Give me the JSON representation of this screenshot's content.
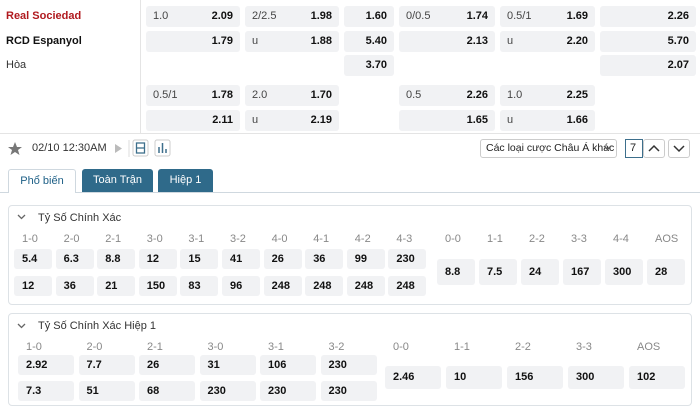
{
  "match": {
    "labels": [
      "Real Sociedad",
      "RCD Espanyol",
      "Hòa"
    ],
    "rows": [
      [
        {
          "line": "1.0",
          "odds": "2.09"
        },
        {
          "line": "2/2.5",
          "odds": "1.98"
        },
        {
          "odds": "1.60"
        },
        {
          "line": "0/0.5",
          "odds": "1.74"
        },
        {
          "line": "0.5/1",
          "odds": "1.69"
        },
        {
          "odds": "2.26"
        }
      ],
      [
        {
          "odds": "1.79"
        },
        {
          "line": "u",
          "odds": "1.88"
        },
        {
          "odds": "5.40"
        },
        {
          "odds": "2.13"
        },
        {
          "line": "u",
          "odds": "2.20"
        },
        {
          "odds": "5.70"
        }
      ],
      [
        null,
        null,
        {
          "odds": "3.70"
        },
        null,
        null,
        {
          "odds": "2.07"
        }
      ],
      [
        {
          "line": "0.5/1",
          "odds": "1.78"
        },
        {
          "line": "2.0",
          "odds": "1.70"
        },
        null,
        {
          "line": "0.5",
          "odds": "2.26"
        },
        {
          "line": "1.0",
          "odds": "2.25"
        },
        null
      ],
      [
        {
          "odds": "2.11"
        },
        {
          "line": "u",
          "odds": "2.19"
        },
        null,
        {
          "odds": "1.65"
        },
        {
          "line": "u",
          "odds": "1.66"
        },
        null
      ]
    ]
  },
  "toolbar": {
    "datetime": "02/10 12:30AM",
    "market_select": "Các loại cược Châu Á khác",
    "page_input": "7"
  },
  "tabs": [
    "Phổ biến",
    "Toàn Trận",
    "Hiệp 1"
  ],
  "sections": [
    {
      "title": "Tỷ Số Chính Xác",
      "home_scores": [
        "1-0",
        "2-0",
        "2-1",
        "3-0",
        "3-1",
        "3-2",
        "4-0",
        "4-1",
        "4-2",
        "4-3"
      ],
      "home_odds": [
        "5.4",
        "6.3",
        "8.8",
        "12",
        "15",
        "41",
        "26",
        "36",
        "99",
        "230"
      ],
      "away_odds": [
        "12",
        "36",
        "21",
        "150",
        "83",
        "96",
        "248",
        "248",
        "248",
        "248"
      ],
      "draw_scores": [
        "0-0",
        "1-1",
        "2-2",
        "3-3",
        "4-4",
        "AOS"
      ],
      "draw_odds": [
        "8.8",
        "7.5",
        "24",
        "167",
        "300",
        "28"
      ]
    },
    {
      "title": "Tỷ Số Chính Xác Hiệp 1",
      "home_scores": [
        "1-0",
        "2-0",
        "2-1",
        "3-0",
        "3-1",
        "3-2"
      ],
      "home_odds": [
        "2.92",
        "7.7",
        "26",
        "31",
        "106",
        "230"
      ],
      "away_odds": [
        "7.3",
        "51",
        "68",
        "230",
        "230",
        "230"
      ],
      "draw_scores": [
        "0-0",
        "1-1",
        "2-2",
        "3-3",
        "AOS"
      ],
      "draw_odds": [
        "2.46",
        "10",
        "156",
        "300",
        "102"
      ]
    }
  ]
}
